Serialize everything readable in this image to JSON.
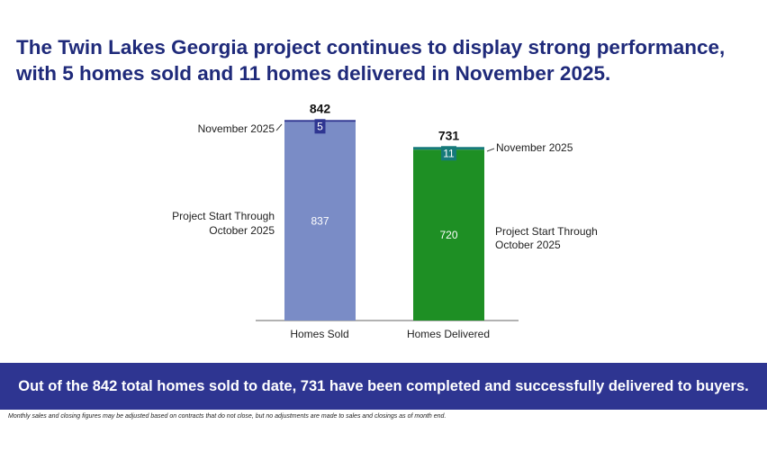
{
  "title": "The Twin Lakes Georgia project continues to display strong performance, with 5 homes sold and 11 homes delivered in November 2025.",
  "chart_data": {
    "type": "bar",
    "stacked": true,
    "categories": [
      "Homes Sold",
      "Homes Delivered"
    ],
    "series": [
      {
        "name": "Project Start Through October 2025",
        "values": [
          837,
          720
        ],
        "colors": [
          "#7a8cc6",
          "#1e8f24"
        ]
      },
      {
        "name": "November 2025",
        "values": [
          5,
          11
        ],
        "colors": [
          "#2e3591",
          "#167a7a"
        ]
      }
    ],
    "totals": [
      "842",
      "731"
    ],
    "segment_labels": {
      "base": [
        "837",
        "720"
      ],
      "top": [
        "5",
        "11"
      ]
    },
    "annotations": {
      "left_top": "November 2025",
      "left_base": [
        "Project Start Through",
        "October 2025"
      ],
      "right_top": "November 2025",
      "right_base": [
        "Project Start Through",
        "October 2025"
      ]
    },
    "ylim": [
      0,
      842
    ]
  },
  "banner": "Out of the 842 total homes sold to date, 731 have been completed and successfully delivered to buyers.",
  "footnote": "Monthly sales and closing figures may be adjusted based on contracts that do not close, but no adjustments are made to sales and closings as of month end."
}
